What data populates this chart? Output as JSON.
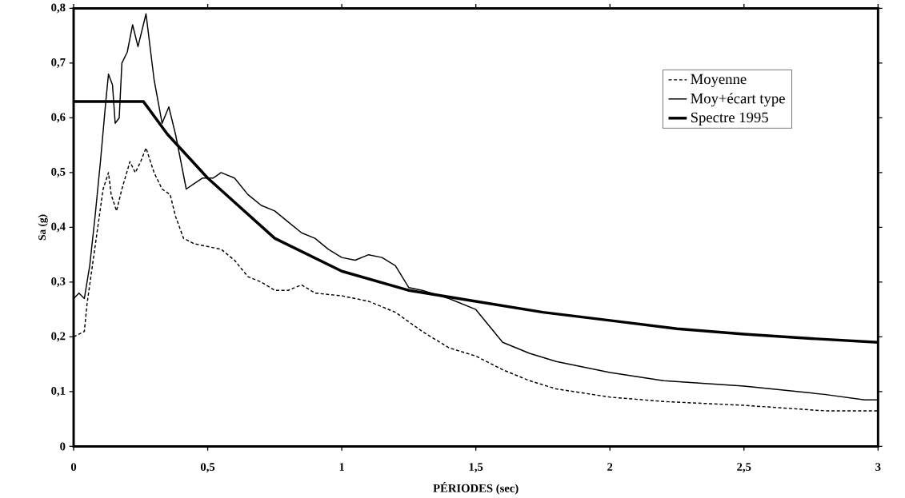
{
  "chart_data": {
    "type": "line",
    "xlabel": "PÉRIODES (sec)",
    "ylabel": "Sa (g)",
    "xlim": [
      0,
      3
    ],
    "ylim": [
      0,
      0.8
    ],
    "xticks": [
      0,
      {
        "value": 0.5,
        "label": "0,5"
      },
      1,
      {
        "value": 1.5,
        "label": "1,5"
      },
      2,
      {
        "value": 2.5,
        "label": "2,5"
      },
      3
    ],
    "yticks": [
      0,
      {
        "value": 0.1,
        "label": "0,1"
      },
      {
        "value": 0.2,
        "label": "0,2"
      },
      {
        "value": 0.3,
        "label": "0,3"
      },
      {
        "value": 0.4,
        "label": "0,4"
      },
      {
        "value": 0.5,
        "label": "0,5"
      },
      {
        "value": 0.6,
        "label": "0,6"
      },
      {
        "value": 0.7,
        "label": "0,7"
      },
      {
        "value": 0.8,
        "label": "0,8"
      }
    ],
    "legend": "top right",
    "grid": false,
    "marker": "none",
    "series": [
      {
        "name": "Moyenne",
        "color": "#000000",
        "line_style": "dashed",
        "x": [
          0,
          0.04,
          0.05,
          0.07,
          0.09,
          0.11,
          0.13,
          0.14,
          0.16,
          0.18,
          0.21,
          0.23,
          0.25,
          0.27,
          0.3,
          0.33,
          0.36,
          0.38,
          0.41,
          0.45,
          0.5,
          0.55,
          0.6,
          0.65,
          0.7,
          0.75,
          0.8,
          0.85,
          0.9,
          1.0,
          1.1,
          1.2,
          1.3,
          1.4,
          1.5,
          1.6,
          1.7,
          1.8,
          2.0,
          2.2,
          2.5,
          2.8,
          3.0
        ],
        "values": [
          0.2,
          0.21,
          0.26,
          0.33,
          0.4,
          0.47,
          0.5,
          0.46,
          0.43,
          0.47,
          0.52,
          0.5,
          0.52,
          0.545,
          0.5,
          0.47,
          0.46,
          0.42,
          0.38,
          0.37,
          0.365,
          0.36,
          0.34,
          0.31,
          0.3,
          0.285,
          0.285,
          0.295,
          0.28,
          0.275,
          0.265,
          0.245,
          0.21,
          0.18,
          0.165,
          0.14,
          0.12,
          0.105,
          0.09,
          0.082,
          0.075,
          0.065,
          0.065
        ]
      },
      {
        "name": "Moy+écart type",
        "color": "#000000",
        "line_style": "solid",
        "x": [
          0,
          0.02,
          0.04,
          0.06,
          0.08,
          0.1,
          0.12,
          0.13,
          0.145,
          0.155,
          0.17,
          0.18,
          0.2,
          0.22,
          0.24,
          0.27,
          0.3,
          0.33,
          0.355,
          0.38,
          0.4,
          0.42,
          0.45,
          0.48,
          0.52,
          0.55,
          0.6,
          0.65,
          0.7,
          0.75,
          0.8,
          0.85,
          0.9,
          0.95,
          1.0,
          1.05,
          1.1,
          1.15,
          1.2,
          1.25,
          1.3,
          1.4,
          1.5,
          1.55,
          1.6,
          1.7,
          1.8,
          2.0,
          2.2,
          2.5,
          2.8,
          2.95,
          3.0
        ],
        "values": [
          0.27,
          0.28,
          0.27,
          0.33,
          0.42,
          0.52,
          0.63,
          0.68,
          0.66,
          0.59,
          0.6,
          0.7,
          0.72,
          0.77,
          0.73,
          0.79,
          0.67,
          0.59,
          0.62,
          0.57,
          0.52,
          0.47,
          0.48,
          0.49,
          0.49,
          0.5,
          0.49,
          0.46,
          0.44,
          0.43,
          0.41,
          0.39,
          0.38,
          0.36,
          0.345,
          0.34,
          0.35,
          0.345,
          0.33,
          0.29,
          0.285,
          0.27,
          0.25,
          0.22,
          0.19,
          0.17,
          0.155,
          0.135,
          0.12,
          0.11,
          0.095,
          0.085,
          0.085
        ]
      },
      {
        "name": "Spectre 1995",
        "color": "#000000",
        "line_style": "solid",
        "x": [
          0,
          0.26,
          0.35,
          0.5,
          0.75,
          1.0,
          1.25,
          1.5,
          1.75,
          2.0,
          2.25,
          2.5,
          2.75,
          3.0
        ],
        "values": [
          0.63,
          0.63,
          0.57,
          0.49,
          0.38,
          0.32,
          0.285,
          0.265,
          0.245,
          0.23,
          0.215,
          0.205,
          0.197,
          0.19
        ]
      }
    ]
  }
}
